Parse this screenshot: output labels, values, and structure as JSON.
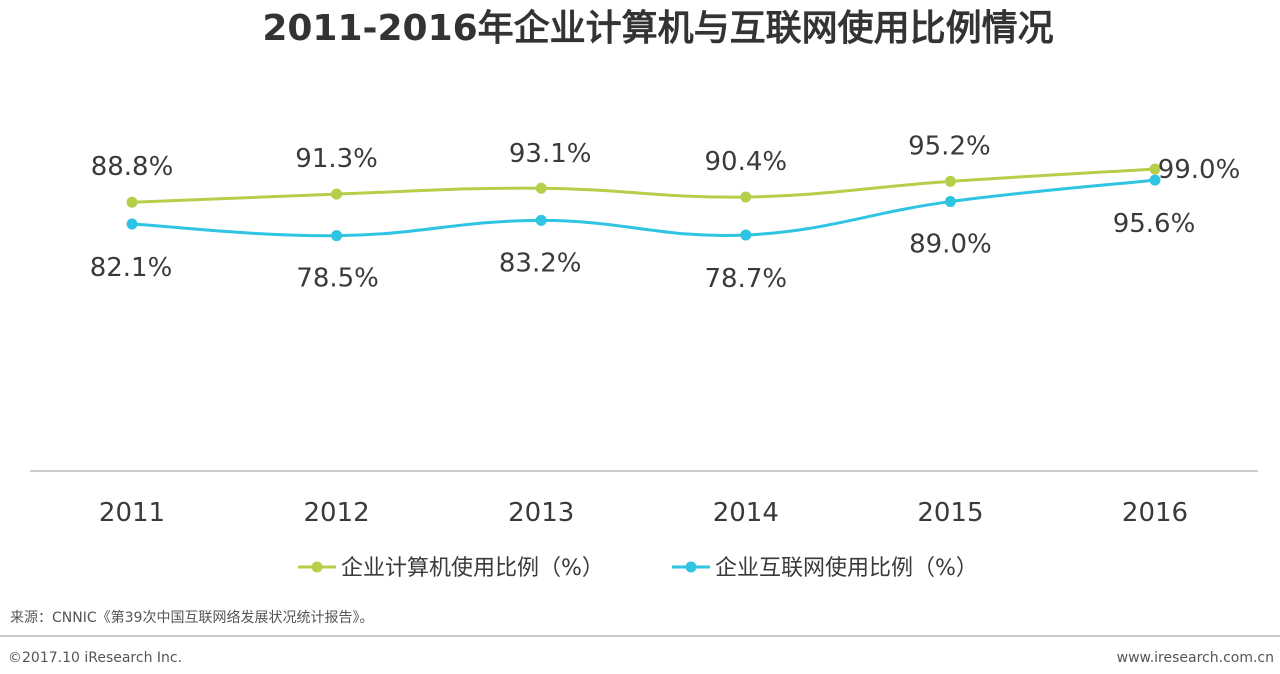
{
  "chart_data": {
    "type": "line",
    "title": "2011-2016年企业计算机与互联网使用比例情况",
    "categories": [
      "2011",
      "2012",
      "2013",
      "2014",
      "2015",
      "2016"
    ],
    "series": [
      {
        "name": "企业计算机使用比例（%）",
        "color": "#b5cf4a",
        "values": [
          88.8,
          91.3,
          93.1,
          90.4,
          95.2,
          99.0
        ],
        "labels": [
          "88.8%",
          "91.3%",
          "93.1%",
          "90.4%",
          "95.2%",
          "99.0%"
        ]
      },
      {
        "name": "企业互联网使用比例（%）",
        "color": "#2ec4e2",
        "values": [
          82.1,
          78.5,
          83.2,
          78.7,
          89.0,
          95.6
        ],
        "labels": [
          "82.1%",
          "78.5%",
          "83.2%",
          "78.7%",
          "89.0%",
          "95.6%"
        ]
      }
    ],
    "grid": false,
    "legend": "bottom-center"
  },
  "footer": {
    "source": "来源：CNNIC《第39次中国互联网络发展状况统计报告》。",
    "copyright": "©2017.10 iResearch Inc.",
    "website": "www.iresearch.com.cn"
  }
}
